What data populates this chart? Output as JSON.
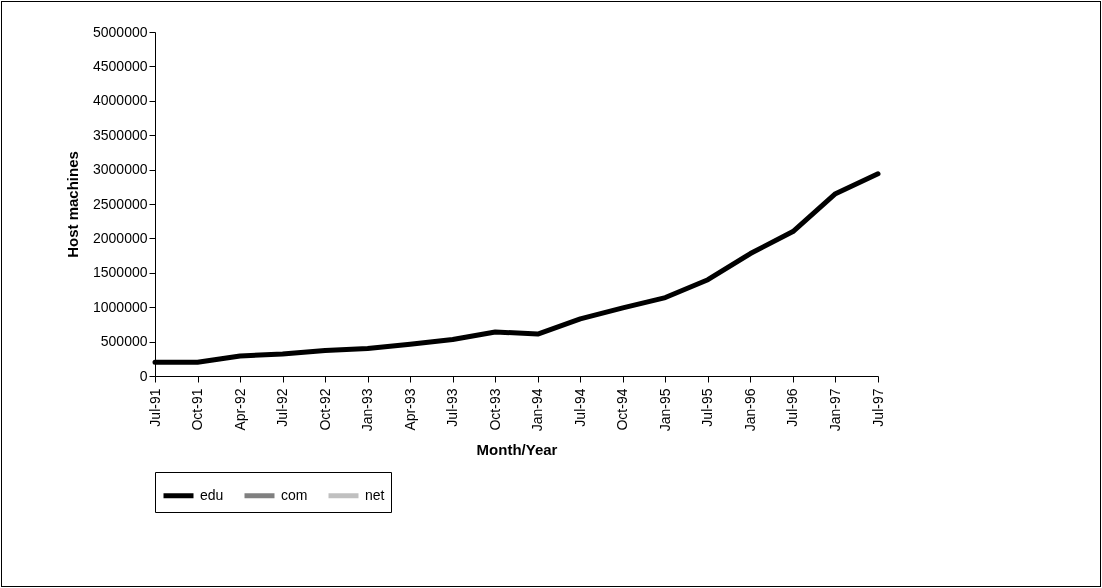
{
  "chart_data": {
    "type": "line",
    "xlabel": "Month/Year",
    "ylabel": "Host machines",
    "categories": [
      "Jul-91",
      "Oct-91",
      "Apr-92",
      "Jul-92",
      "Oct-92",
      "Jan-93",
      "Apr-93",
      "Jul-93",
      "Oct-93",
      "Jan-94",
      "Jul-94",
      "Oct-94",
      "Jan-95",
      "Jul-95",
      "Jan-96",
      "Jul-96",
      "Jan-97",
      "Jul-97"
    ],
    "series": [
      {
        "name": "edu",
        "color": "#000000",
        "values": [
          200000,
          200000,
          290000,
          320000,
          370000,
          400000,
          460000,
          530000,
          640000,
          610000,
          830000,
          990000,
          1140000,
          1400000,
          1780000,
          2100000,
          2650000,
          2940000
        ]
      },
      {
        "name": "com",
        "color": "#808080",
        "values": [
          null,
          null,
          null,
          null,
          null,
          null,
          null,
          null,
          null,
          null,
          null,
          null,
          null,
          null,
          null,
          null,
          null,
          null
        ]
      },
      {
        "name": "net",
        "color": "#c0c0c0",
        "values": [
          null,
          null,
          null,
          null,
          null,
          null,
          null,
          null,
          null,
          null,
          null,
          null,
          null,
          null,
          null,
          null,
          null,
          null
        ]
      }
    ],
    "ylim": [
      0,
      5000000
    ],
    "yticks": [
      0,
      500000,
      1000000,
      1500000,
      2000000,
      2500000,
      3000000,
      3500000,
      4000000,
      4500000,
      5000000
    ],
    "grid": false,
    "legend": "bottom",
    "marker": "none",
    "line_style": "solid"
  }
}
